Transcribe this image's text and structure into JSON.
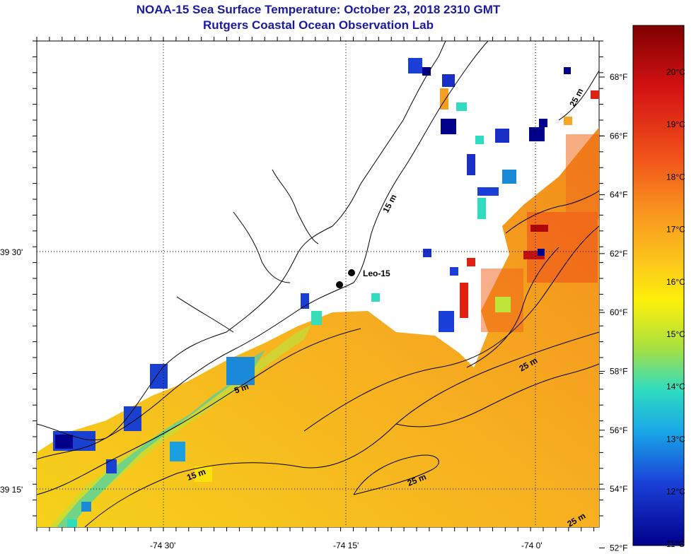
{
  "header": {
    "title": "NOAA-15 Sea Surface Temperature:  October 23, 2018 2310 GMT",
    "subtitle": "Rutgers Coastal Ocean Observation Lab"
  },
  "map": {
    "lon_ticks": [
      "-74 30'",
      "-74 15'",
      "-74 0'"
    ],
    "lat_ticks": [
      "39 30'",
      "39 15'"
    ],
    "station": "Leo-15",
    "depth_labels": [
      "15 m",
      "15 m",
      "5 m",
      "25 m",
      "25 m",
      "25 m",
      "25 m"
    ]
  },
  "colorbar": {
    "fahrenheit": [
      "68°F",
      "66°F",
      "64°F",
      "62°F",
      "60°F",
      "58°F",
      "56°F",
      "54°F",
      "52°F"
    ],
    "celsius": [
      "20°C",
      "19°C",
      "18°C",
      "17°C",
      "16°C",
      "15°C",
      "14°C",
      "13°C",
      "12°C",
      "11°C"
    ],
    "colors": [
      "#7f0000",
      "#c8100a",
      "#ef3a14",
      "#f5741c",
      "#f8a624",
      "#fde10a",
      "#bfe43a",
      "#37dcb8",
      "#1a9be0",
      "#1a3fd8",
      "#00008c"
    ]
  }
}
